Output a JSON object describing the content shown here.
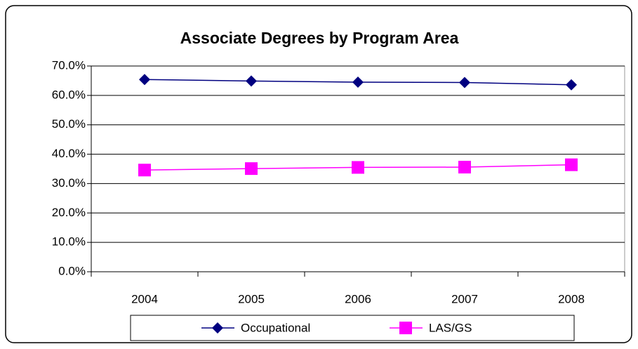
{
  "chart_data": {
    "type": "line",
    "title": "Associate Degrees by Program Area",
    "categories": [
      "2004",
      "2005",
      "2006",
      "2007",
      "2008"
    ],
    "series": [
      {
        "name": "Occupational",
        "color": "#000080",
        "marker": "diamond",
        "values": [
          65.4,
          64.9,
          64.5,
          64.4,
          63.6
        ]
      },
      {
        "name": "LAS/GS",
        "color": "#ff00ff",
        "marker": "square",
        "values": [
          34.6,
          35.1,
          35.5,
          35.6,
          36.4
        ]
      }
    ],
    "ylim": [
      0,
      70
    ],
    "yticks": [
      {
        "value": 0,
        "label": "0.0%"
      },
      {
        "value": 10,
        "label": "10.0%"
      },
      {
        "value": 20,
        "label": "20.0%"
      },
      {
        "value": 30,
        "label": "30.0%"
      },
      {
        "value": 40,
        "label": "40.0%"
      },
      {
        "value": 50,
        "label": "50.0%"
      },
      {
        "value": 60,
        "label": "60.0%"
      },
      {
        "value": 70,
        "label": "70.0%"
      }
    ],
    "grid": true,
    "legend": "bottom"
  }
}
